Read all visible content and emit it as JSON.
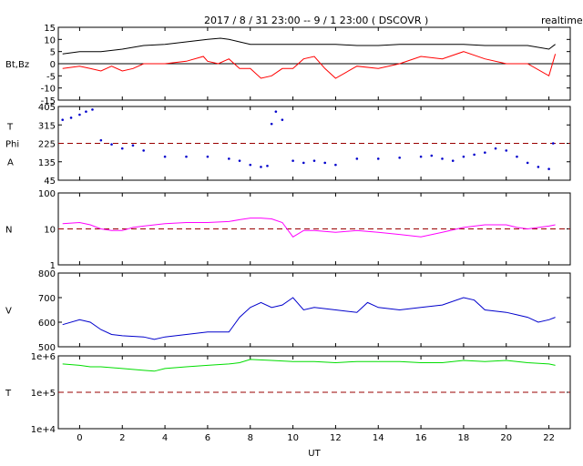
{
  "header": {
    "title": "2017 / 8 / 31   23:00 --  9 / 1   23:00 ( DSCOVR )",
    "badge": "realtime"
  },
  "chart_data": [
    {
      "type": "line",
      "panel": "magnetic-field",
      "ylabel": "Bt,Bz",
      "ylim": [
        -15,
        15
      ],
      "yticks": [
        15,
        10,
        5,
        0,
        -5,
        -10,
        -15
      ],
      "ytick_labels": [
        "15",
        "10",
        "5",
        "0",
        "-5",
        "-10",
        "-15"
      ],
      "reference_line": {
        "value": 0,
        "color": "#000000",
        "style": "solid"
      },
      "series": [
        {
          "color": "#000000",
          "x": [
            -0.8,
            0,
            0.5,
            1,
            2,
            3,
            4,
            5,
            6,
            6.6,
            7,
            7.5,
            8,
            9,
            10,
            11,
            12,
            13,
            14,
            15,
            16,
            17,
            18,
            19,
            20,
            21,
            22,
            22.3
          ],
          "y": [
            4,
            5,
            5,
            5,
            6,
            7.5,
            8,
            9,
            10,
            10.5,
            10,
            9,
            8,
            8,
            8,
            8,
            8,
            7.5,
            7.5,
            8,
            8,
            8,
            8,
            7.5,
            7.5,
            7.5,
            6,
            8
          ]
        },
        {
          "color": "#ff0000",
          "x": [
            -0.8,
            0,
            0.5,
            1,
            1.5,
            2,
            2.5,
            3,
            4,
            5,
            5.8,
            6,
            6.5,
            7,
            7.5,
            8,
            8.5,
            9,
            9.5,
            10,
            10.5,
            11,
            11.5,
            12,
            13,
            14,
            15,
            16,
            17,
            18,
            19,
            20,
            21,
            22,
            22.3
          ],
          "y": [
            -2,
            -1,
            -2,
            -3,
            -1,
            -3,
            -2,
            0,
            0,
            1,
            3,
            1,
            0,
            2,
            -2,
            -2,
            -6,
            -5,
            -2,
            -2,
            2,
            3,
            -2,
            -6,
            -1,
            -2,
            0,
            3,
            2,
            5,
            2,
            0,
            0,
            -5,
            4
          ]
        }
      ]
    },
    {
      "type": "scatter",
      "panel": "phi-angle",
      "ylabel": "Phi",
      "ylabel_top": "T",
      "ylabel_bottom": "A",
      "ylim": [
        45,
        405
      ],
      "yticks": [
        405,
        315,
        225,
        135,
        45
      ],
      "ytick_labels": [
        "405",
        "315",
        "225",
        "135",
        "45"
      ],
      "reference_line": {
        "value": 225,
        "color": "#990000",
        "style": "dashed"
      },
      "series": [
        {
          "color": "#0000cc",
          "x": [
            -0.8,
            -0.4,
            0,
            0.3,
            0.6,
            1,
            1.5,
            2,
            2.5,
            3,
            4,
            5,
            6,
            7,
            7.5,
            8,
            8.5,
            8.8,
            9,
            9.2,
            9.5,
            10,
            10.5,
            11,
            11.5,
            12,
            13,
            14,
            15,
            16,
            16.5,
            17,
            17.5,
            18,
            18.5,
            19,
            19.5,
            20,
            20.5,
            21,
            21.5,
            22,
            22.2
          ],
          "y": [
            340,
            350,
            365,
            380,
            390,
            240,
            220,
            200,
            215,
            190,
            160,
            160,
            160,
            150,
            140,
            120,
            110,
            115,
            320,
            380,
            340,
            140,
            130,
            140,
            130,
            120,
            150,
            150,
            155,
            160,
            165,
            150,
            140,
            160,
            170,
            180,
            200,
            190,
            160,
            130,
            110,
            100,
            225
          ]
        }
      ]
    },
    {
      "type": "line",
      "panel": "density",
      "ylabel": "N",
      "yscale": "log",
      "ylim": [
        1,
        100
      ],
      "yticks": [
        100,
        10,
        1
      ],
      "ytick_labels": [
        "100",
        "10",
        "1"
      ],
      "reference_line": {
        "value": 10,
        "color": "#990000",
        "style": "dashed"
      },
      "series": [
        {
          "color": "#ff00ff",
          "x": [
            -0.8,
            0,
            0.5,
            1,
            1.5,
            2,
            2.5,
            3,
            4,
            5,
            6,
            7,
            7.5,
            8,
            8.5,
            9,
            9.5,
            10,
            10.5,
            11,
            12,
            13,
            14,
            15,
            16,
            17,
            18,
            19,
            20,
            20.5,
            21,
            22,
            22.3
          ],
          "y": [
            14,
            15,
            13,
            10,
            9,
            9,
            11,
            12,
            14,
            15,
            15,
            16,
            18,
            20,
            20,
            19,
            15,
            6,
            9,
            9,
            8,
            9,
            8,
            7,
            6,
            8,
            11,
            13,
            13,
            11,
            10,
            12,
            13
          ]
        }
      ]
    },
    {
      "type": "line",
      "panel": "speed",
      "ylabel": "V",
      "ylim": [
        500,
        800
      ],
      "yticks": [
        800,
        700,
        600,
        500
      ],
      "ytick_labels": [
        "800",
        "700",
        "600",
        "500"
      ],
      "series": [
        {
          "color": "#0000cc",
          "x": [
            -0.8,
            0,
            0.5,
            1,
            1.5,
            2,
            3,
            3.5,
            4,
            5,
            6,
            7,
            7.5,
            8,
            8.5,
            9,
            9.5,
            10,
            10.5,
            11,
            12,
            13,
            13.5,
            14,
            15,
            16,
            17,
            18,
            18.5,
            19,
            20,
            20.5,
            21,
            21.5,
            22,
            22.3
          ],
          "y": [
            590,
            610,
            600,
            570,
            550,
            545,
            540,
            530,
            540,
            550,
            560,
            560,
            620,
            660,
            680,
            660,
            670,
            700,
            650,
            660,
            650,
            640,
            680,
            660,
            650,
            660,
            670,
            700,
            690,
            650,
            640,
            630,
            620,
            600,
            610,
            620
          ]
        }
      ]
    },
    {
      "type": "line",
      "panel": "temperature",
      "ylabel": "T",
      "yscale": "log",
      "ylim": [
        10000,
        1000000
      ],
      "yticks": [
        1000000,
        100000,
        10000
      ],
      "ytick_labels": [
        "1e+6",
        "1e+5",
        "1e+4"
      ],
      "reference_line": {
        "value": 100000,
        "color": "#990000",
        "style": "dashed"
      },
      "xlabel": "UT",
      "xlim": [
        -1,
        23
      ],
      "xticks": [
        0,
        2,
        4,
        6,
        8,
        10,
        12,
        14,
        16,
        18,
        20,
        22
      ],
      "xtick_labels": [
        "0",
        "2",
        "4",
        "6",
        "8",
        "10",
        "12",
        "14",
        "16",
        "18",
        "20",
        "22"
      ],
      "series": [
        {
          "color": "#00dd00",
          "x": [
            -0.8,
            0,
            0.5,
            1,
            2,
            3,
            3.5,
            4,
            5,
            6,
            7,
            7.5,
            8,
            9,
            10,
            11,
            12,
            13,
            14,
            15,
            16,
            17,
            18,
            19,
            20,
            21,
            22,
            22.3
          ],
          "y": [
            600000,
            550000,
            500000,
            500000,
            450000,
            400000,
            380000,
            450000,
            500000,
            550000,
            600000,
            650000,
            800000,
            750000,
            700000,
            700000,
            650000,
            700000,
            700000,
            700000,
            650000,
            650000,
            750000,
            700000,
            750000,
            650000,
            600000,
            550000
          ]
        }
      ]
    }
  ]
}
